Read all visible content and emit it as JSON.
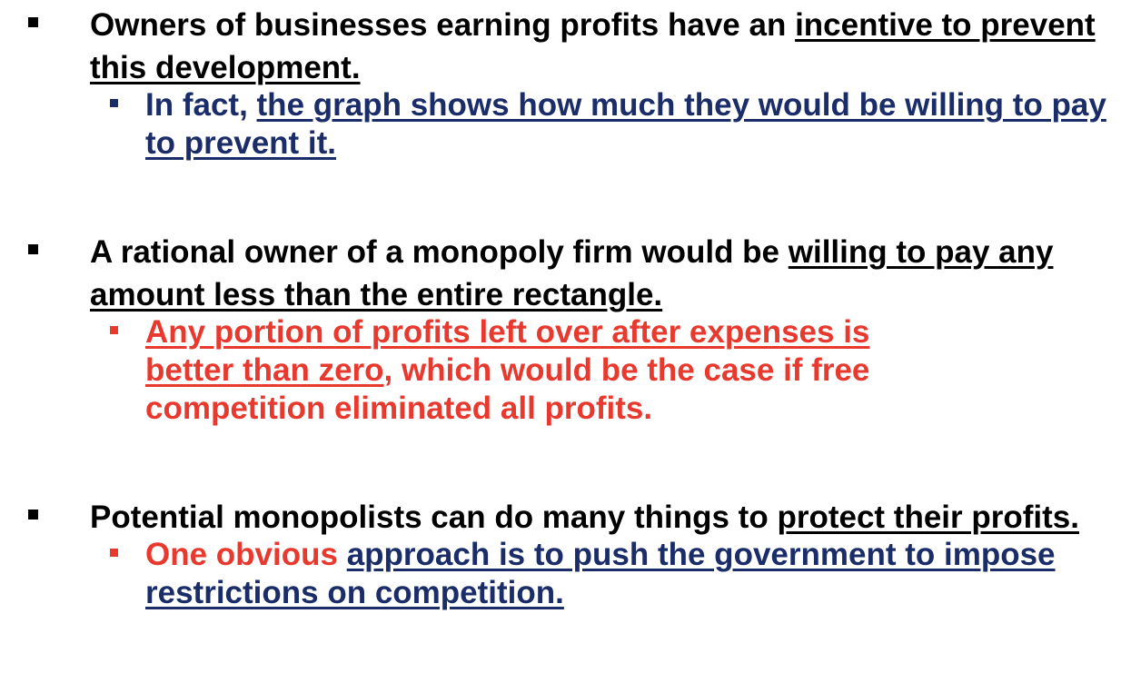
{
  "bullets": [
    {
      "main": {
        "plain": "Owners of businesses earning profits have an ",
        "underlined": "incentive to prevent this development."
      },
      "sub": {
        "plain": "In fact, ",
        "underlined": "the graph shows how much they would be willing to pay to prevent it."
      }
    },
    {
      "main": {
        "plain": "A rational owner of a monopoly firm would be ",
        "underlined": "willing to pay any amount less than the entire rectangle."
      },
      "sub": {
        "underlined": "Any portion of profits left over after expenses is better than zero",
        "plain": ", which would be the case if free competition eliminated all profits."
      }
    },
    {
      "main": {
        "plain": "Potential monopolists can do many things to ",
        "underlined": "protect their profits."
      },
      "sub": {
        "plain_red": "One obvious ",
        "underlined": "approach is to push the government to impose restrictions on competition."
      }
    }
  ],
  "colors": {
    "text_main": "#000000",
    "text_navy": "#1b2d69",
    "text_red": "#e8392f",
    "background": "#ffffff"
  }
}
